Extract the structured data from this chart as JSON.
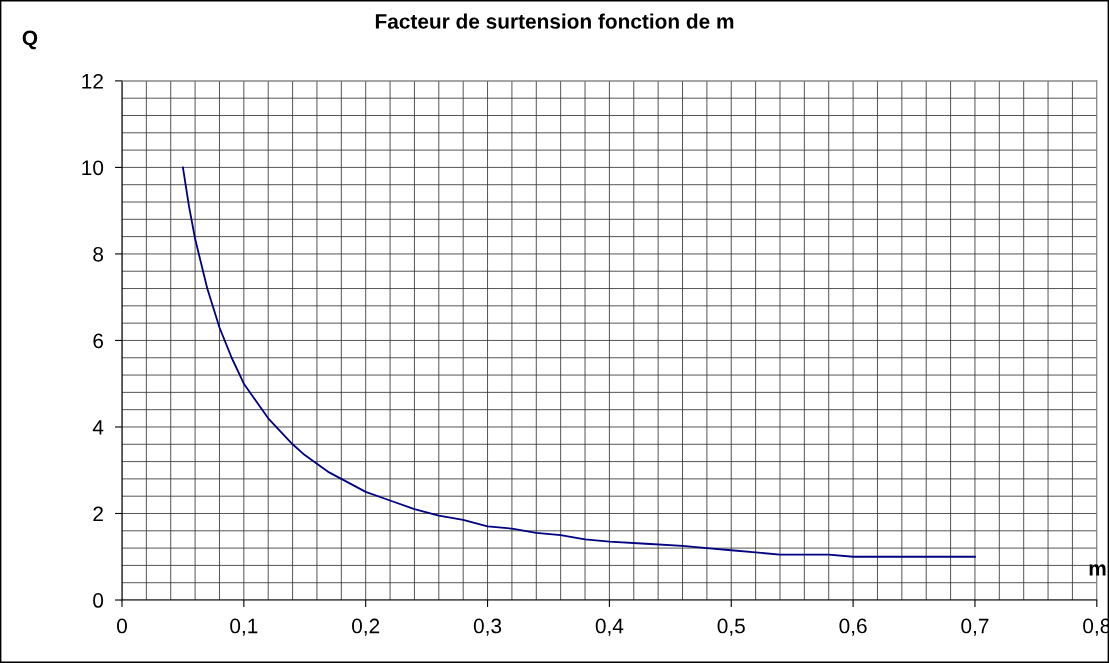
{
  "chart_data": {
    "type": "line",
    "title": "Facteur de surtension fonction de m",
    "xlabel": "m",
    "ylabel": "Q",
    "x": [
      0.05,
      0.055,
      0.06,
      0.07,
      0.08,
      0.09,
      0.1,
      0.11,
      0.12,
      0.13,
      0.14,
      0.15,
      0.16,
      0.17,
      0.18,
      0.19,
      0.2,
      0.22,
      0.24,
      0.26,
      0.28,
      0.3,
      0.32,
      0.34,
      0.36,
      0.38,
      0.4,
      0.43,
      0.46,
      0.48,
      0.5,
      0.52,
      0.54,
      0.58,
      0.6,
      0.7
    ],
    "series": [
      {
        "color": "#000080",
        "values": [
          10,
          9.1,
          8.35,
          7.2,
          6.3,
          5.6,
          5.0,
          4.6,
          4.2,
          3.9,
          3.6,
          3.35,
          3.15,
          2.95,
          2.8,
          2.65,
          2.5,
          2.3,
          2.1,
          1.95,
          1.85,
          1.7,
          1.65,
          1.55,
          1.5,
          1.4,
          1.35,
          1.3,
          1.25,
          1.2,
          1.15,
          1.1,
          1.05,
          1.05,
          1.0,
          1.0
        ]
      }
    ],
    "xlim": [
      0,
      0.8
    ],
    "ylim": [
      0,
      12
    ],
    "xticks": [
      0,
      {
        "value": 0.02,
        "label": null
      },
      {
        "value": 0.04,
        "label": null
      },
      {
        "value": 0.06,
        "label": null
      },
      {
        "value": 0.08,
        "label": null
      },
      {
        "value": 0.1,
        "label": "0,1"
      },
      {
        "value": 0.12,
        "label": null
      },
      {
        "value": 0.14,
        "label": null
      },
      {
        "value": 0.16,
        "label": null
      },
      {
        "value": 0.18,
        "label": null
      },
      {
        "value": 0.2,
        "label": "0,2"
      },
      {
        "value": 0.22,
        "label": null
      },
      {
        "value": 0.24,
        "label": null
      },
      {
        "value": 0.26,
        "label": null
      },
      {
        "value": 0.28,
        "label": null
      },
      {
        "value": 0.3,
        "label": "0,3"
      },
      {
        "value": 0.32,
        "label": null
      },
      {
        "value": 0.34,
        "label": null
      },
      {
        "value": 0.36,
        "label": null
      },
      {
        "value": 0.38,
        "label": null
      },
      {
        "value": 0.4,
        "label": "0,4"
      },
      {
        "value": 0.42,
        "label": null
      },
      {
        "value": 0.44,
        "label": null
      },
      {
        "value": 0.46,
        "label": null
      },
      {
        "value": 0.48,
        "label": null
      },
      {
        "value": 0.5,
        "label": "0,5"
      },
      {
        "value": 0.52,
        "label": null
      },
      {
        "value": 0.54,
        "label": null
      },
      {
        "value": 0.56,
        "label": null
      },
      {
        "value": 0.58,
        "label": null
      },
      {
        "value": 0.6,
        "label": "0,6"
      },
      {
        "value": 0.62,
        "label": null
      },
      {
        "value": 0.64,
        "label": null
      },
      {
        "value": 0.66,
        "label": null
      },
      {
        "value": 0.68,
        "label": null
      },
      {
        "value": 0.7,
        "label": "0,7"
      },
      {
        "value": 0.72,
        "label": null
      },
      {
        "value": 0.74,
        "label": null
      },
      {
        "value": 0.76,
        "label": null
      },
      {
        "value": 0.78,
        "label": null
      },
      {
        "value": 0.8,
        "label": "0,8"
      }
    ],
    "yticks": [
      0,
      {
        "value": 0.4,
        "label": null
      },
      {
        "value": 0.8,
        "label": null
      },
      {
        "value": 1.2,
        "label": null
      },
      {
        "value": 1.6,
        "label": null
      },
      2,
      {
        "value": 2.4,
        "label": null
      },
      {
        "value": 2.8,
        "label": null
      },
      {
        "value": 3.2,
        "label": null
      },
      {
        "value": 3.6,
        "label": null
      },
      4,
      {
        "value": 4.4,
        "label": null
      },
      {
        "value": 4.8,
        "label": null
      },
      {
        "value": 5.2,
        "label": null
      },
      {
        "value": 5.6,
        "label": null
      },
      6,
      {
        "value": 6.4,
        "label": null
      },
      {
        "value": 6.8,
        "label": null
      },
      {
        "value": 7.2,
        "label": null
      },
      {
        "value": 7.6,
        "label": null
      },
      8,
      {
        "value": 8.4,
        "label": null
      },
      {
        "value": 8.8,
        "label": null
      },
      {
        "value": 9.2,
        "label": null
      },
      {
        "value": 9.6,
        "label": null
      },
      10,
      {
        "value": 10.4,
        "label": null
      },
      {
        "value": 10.8,
        "label": null
      },
      {
        "value": 11.2,
        "label": null
      },
      {
        "value": 11.6,
        "label": null
      },
      12
    ],
    "grid": true,
    "marker": "none",
    "line_style": "solid"
  }
}
